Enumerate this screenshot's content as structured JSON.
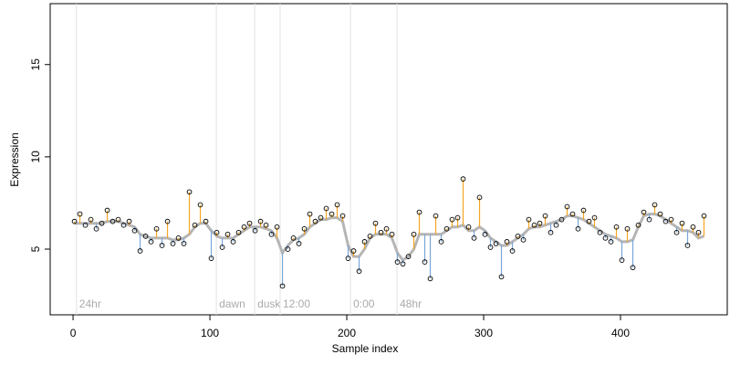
{
  "chart_data": {
    "type": "scatter",
    "x_label": "Sample index",
    "y_label": "Expression",
    "xlim": [
      -16.7,
      478
    ],
    "ylim": [
      1.44,
      18.3
    ],
    "xticks": [
      0,
      100,
      200,
      300,
      400
    ],
    "yticks": [
      5,
      10,
      15
    ],
    "point_color": "#000000",
    "above_color": "#f5a623",
    "below_color": "#7aa6d8",
    "fit_color": "#b5b5b5",
    "annotations": [
      {
        "text": "24hr",
        "x": 2.5
      },
      {
        "text": "dawn",
        "x": 104.7
      },
      {
        "text": "dusk",
        "x": 132.7
      },
      {
        "text": "12:00",
        "x": 151.3
      },
      {
        "text": "0:00",
        "x": 202.7
      },
      {
        "text": "48hr",
        "x": 236.7
      }
    ],
    "x": [
      1,
      5,
      9,
      13,
      17,
      21,
      25,
      29,
      33,
      37,
      41,
      45,
      49,
      53,
      57,
      61,
      65,
      69,
      73,
      77,
      81,
      85,
      89,
      93,
      97,
      101,
      105,
      109,
      113,
      117,
      121,
      125,
      129,
      133,
      137,
      141,
      145,
      149,
      153,
      157,
      161,
      165,
      169,
      173,
      177,
      181,
      185,
      189,
      193,
      197,
      201,
      205,
      209,
      213,
      217,
      221,
      225,
      229,
      233,
      237,
      241,
      245,
      249,
      253,
      257,
      261,
      265,
      269,
      273,
      277,
      281,
      285,
      289,
      293,
      297,
      301,
      305,
      309,
      313,
      317,
      321,
      325,
      329,
      333,
      337,
      341,
      345,
      349,
      353,
      357,
      361,
      365,
      369,
      373,
      377,
      381,
      385,
      389,
      393,
      397,
      401,
      405,
      409,
      413,
      417,
      421,
      425,
      429,
      433,
      437,
      441,
      445,
      449,
      453,
      457,
      461
    ],
    "values": [
      6.5,
      6.9,
      6.3,
      6.6,
      6.1,
      6.4,
      7.1,
      6.5,
      6.6,
      6.3,
      6.5,
      6.0,
      4.9,
      5.7,
      5.4,
      6.1,
      5.2,
      6.5,
      5.3,
      5.6,
      5.3,
      8.1,
      6.3,
      7.4,
      6.5,
      4.5,
      5.9,
      5.1,
      5.8,
      5.4,
      5.9,
      6.2,
      6.4,
      6.0,
      6.5,
      6.3,
      5.8,
      6.2,
      3.0,
      5.0,
      5.6,
      5.3,
      6.1,
      6.9,
      6.5,
      6.7,
      7.2,
      6.9,
      7.4,
      6.8,
      4.5,
      4.9,
      3.8,
      5.4,
      5.7,
      6.4,
      5.9,
      6.1,
      5.8,
      4.3,
      4.2,
      4.6,
      5.8,
      7.0,
      4.3,
      3.4,
      6.8,
      5.4,
      6.1,
      6.6,
      6.7,
      8.8,
      6.2,
      5.6,
      7.8,
      5.8,
      5.1,
      5.3,
      3.5,
      5.4,
      4.9,
      5.7,
      5.5,
      6.6,
      6.3,
      6.4,
      6.8,
      5.9,
      6.3,
      6.6,
      7.3,
      6.9,
      6.1,
      7.1,
      6.5,
      6.7,
      5.9,
      5.6,
      5.4,
      6.2,
      4.4,
      6.1,
      4.0,
      6.3,
      7.0,
      6.6,
      7.4,
      6.9,
      6.5,
      6.6,
      5.9,
      6.4,
      5.2,
      6.2,
      5.9,
      6.8
    ],
    "fit": [
      6.4,
      6.4,
      6.4,
      6.4,
      6.4,
      6.4,
      6.5,
      6.5,
      6.5,
      6.4,
      6.3,
      6.2,
      5.8,
      5.7,
      5.6,
      5.6,
      5.6,
      5.6,
      5.5,
      5.5,
      5.6,
      5.8,
      6.2,
      6.4,
      6.4,
      6.0,
      5.7,
      5.6,
      5.6,
      5.6,
      5.8,
      6.0,
      6.2,
      6.2,
      6.2,
      6.1,
      6.0,
      5.6,
      4.8,
      5.2,
      5.5,
      5.6,
      5.8,
      6.2,
      6.4,
      6.6,
      6.6,
      6.7,
      6.7,
      6.5,
      5.2,
      4.6,
      4.6,
      5.0,
      5.6,
      5.8,
      5.8,
      5.8,
      5.6,
      4.8,
      4.4,
      4.6,
      5.0,
      5.8,
      5.8,
      5.8,
      5.8,
      5.8,
      6.0,
      6.2,
      6.2,
      6.3,
      6.0,
      6.0,
      6.2,
      6.0,
      5.6,
      5.4,
      5.2,
      5.2,
      5.4,
      5.6,
      5.8,
      6.1,
      6.2,
      6.2,
      6.3,
      6.4,
      6.5,
      6.6,
      6.8,
      6.8,
      6.7,
      6.6,
      6.4,
      6.2,
      6.0,
      5.8,
      5.7,
      5.6,
      5.4,
      5.4,
      5.5,
      6.2,
      6.8,
      6.9,
      6.9,
      6.8,
      6.6,
      6.4,
      6.2,
      6.0,
      6.0,
      5.9,
      5.6,
      5.7
    ]
  }
}
